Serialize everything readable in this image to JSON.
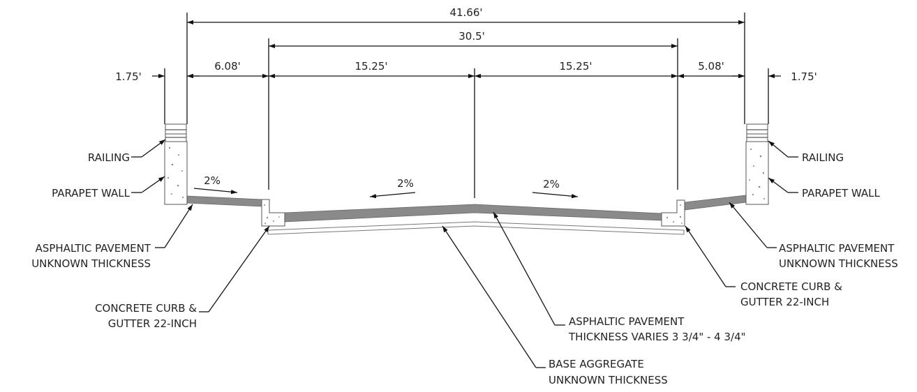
{
  "dimensions": {
    "overall": "41.66'",
    "curb_to_curb": "30.5'",
    "left_lane": "15.25'",
    "right_lane": "15.25'",
    "left_shoulder": "6.08'",
    "right_shoulder": "5.08'",
    "left_wall": "1.75'",
    "right_wall": "1.75'"
  },
  "slopes": {
    "left_shoulder": "2%",
    "left_lane": "2%",
    "right_lane": "2%"
  },
  "labels": {
    "railing_left": "RAILING",
    "parapet_left": "PARAPET WALL",
    "railing_right": "RAILING",
    "parapet_right": "PARAPET WALL",
    "asphalt_left_1": "ASPHALTIC PAVEMENT",
    "asphalt_left_2": "UNKNOWN THICKNESS",
    "asphalt_right_1": "ASPHALTIC PAVEMENT",
    "asphalt_right_2": "UNKNOWN THICKNESS",
    "curb_left_1": "CONCRETE CURB &",
    "curb_left_2": "GUTTER 22-INCH",
    "curb_right_1": "CONCRETE CURB &",
    "curb_right_2": "GUTTER 22-INCH",
    "asphalt_center_1": "ASPHALTIC PAVEMENT",
    "asphalt_center_2": "THICKNESS VARIES 3 3/4\" - 4 3/4\"",
    "base_1": "BASE AGGREGATE",
    "base_2": "UNKNOWN THICKNESS"
  }
}
